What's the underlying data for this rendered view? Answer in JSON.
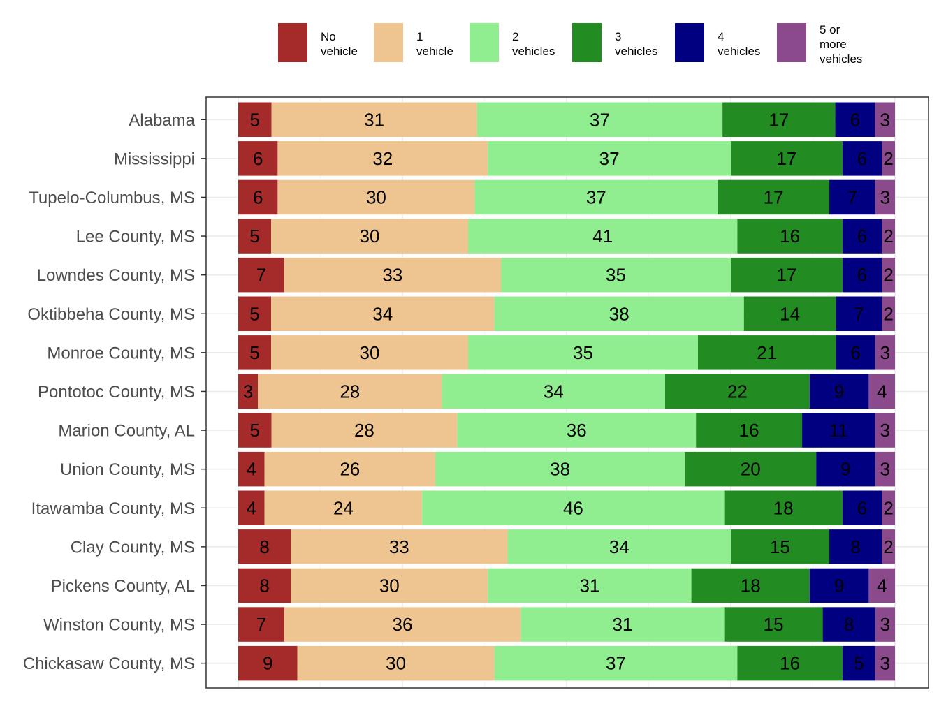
{
  "chart_data": {
    "type": "bar",
    "orientation": "horizontal",
    "stacked": true,
    "percent": true,
    "legend_position": "top",
    "grid": true,
    "categories": [
      "Alabama",
      "Mississippi",
      "Tupelo-Columbus, MS",
      "Lee County, MS",
      "Lowndes County, MS",
      "Oktibbeha County, MS",
      "Monroe County, MS",
      "Pontotoc County, MS",
      "Marion County, AL",
      "Union County, MS",
      "Itawamba County, MS",
      "Clay County, MS",
      "Pickens County, AL",
      "Winston County, MS",
      "Chickasaw County, MS"
    ],
    "series": [
      {
        "name": "No vehicle",
        "legend_lines": [
          "No",
          "vehicle"
        ],
        "color": "#a52a2a",
        "values": [
          5,
          6,
          6,
          5,
          7,
          5,
          5,
          3,
          5,
          4,
          4,
          8,
          8,
          7,
          9
        ]
      },
      {
        "name": "1 vehicle",
        "legend_lines": [
          "1",
          "vehicle"
        ],
        "color": "#eec591",
        "values": [
          31,
          32,
          30,
          30,
          33,
          34,
          30,
          28,
          28,
          26,
          24,
          33,
          30,
          36,
          30
        ]
      },
      {
        "name": "2 vehicles",
        "legend_lines": [
          "2",
          "vehicles"
        ],
        "color": "#90ee90",
        "values": [
          37,
          37,
          37,
          41,
          35,
          38,
          35,
          34,
          36,
          38,
          46,
          34,
          31,
          31,
          37
        ]
      },
      {
        "name": "3 vehicles",
        "legend_lines": [
          "3",
          "vehicles"
        ],
        "color": "#228b22",
        "values": [
          17,
          17,
          17,
          16,
          17,
          14,
          21,
          22,
          16,
          20,
          18,
          15,
          18,
          15,
          16
        ]
      },
      {
        "name": "4 vehicles",
        "legend_lines": [
          "4",
          "vehicles"
        ],
        "color": "#000080",
        "values": [
          6,
          6,
          7,
          6,
          6,
          7,
          6,
          9,
          11,
          9,
          6,
          8,
          9,
          8,
          5
        ]
      },
      {
        "name": "5 or more vehicles",
        "legend_lines": [
          "5 or",
          "more",
          "vehicles"
        ],
        "color": "#8b4a8b",
        "values": [
          3,
          2,
          3,
          2,
          2,
          2,
          3,
          4,
          3,
          3,
          2,
          2,
          4,
          3,
          3
        ]
      }
    ]
  }
}
